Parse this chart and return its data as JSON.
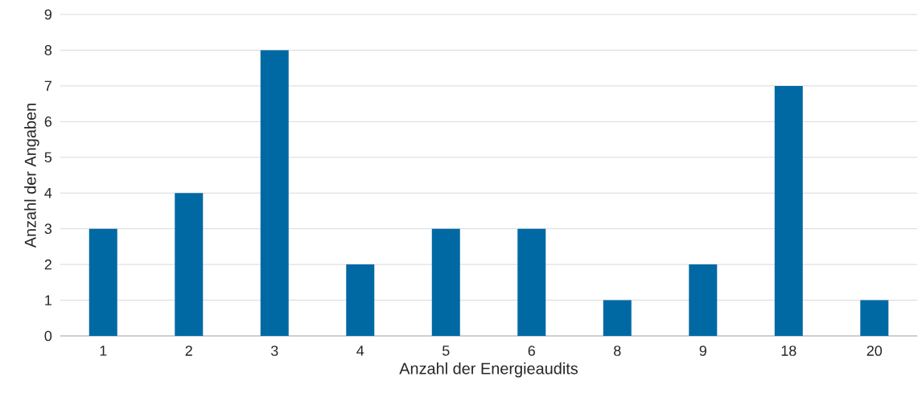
{
  "chart_data": {
    "type": "bar",
    "xlabel": "Anzahl der Energieaudits",
    "ylabel": "Anzahl der Angaben",
    "categories": [
      "1",
      "2",
      "3",
      "4",
      "5",
      "6",
      "8",
      "9",
      "18",
      "20"
    ],
    "values": [
      3,
      4,
      8,
      2,
      3,
      3,
      1,
      2,
      7,
      1
    ],
    "color": "#0069a4",
    "ylim": [
      0,
      9
    ],
    "yticks": [
      0,
      1,
      2,
      3,
      4,
      5,
      6,
      7,
      8,
      9
    ],
    "grid": "y"
  }
}
